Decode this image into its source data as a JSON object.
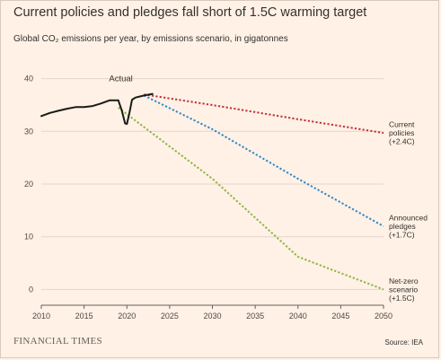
{
  "header": {
    "title": "Current policies and pledges fall short of 1.5C warming target",
    "subtitle": "Global CO₂ emissions per year, by emissions scenario, in gigatonnes"
  },
  "footer": {
    "logo": "FINANCIAL TIMES",
    "source": "Source: IEA"
  },
  "colors": {
    "background": "#fff1e5",
    "actual": "#1a1a1a",
    "current_policies": "#c0323f",
    "announced_pledges": "#2e86c9",
    "net_zero": "#8cb540",
    "grid": "#e3d6c9"
  },
  "chart_data": {
    "type": "line",
    "title": "Current policies and pledges fall short of 1.5C warming target",
    "subtitle": "Global CO₂ emissions per year, by emissions scenario, in gigatonnes",
    "xlim": [
      2010,
      2050
    ],
    "ylim": [
      -3,
      43
    ],
    "x_ticks": [
      2010,
      2015,
      2020,
      2025,
      2030,
      2035,
      2040,
      2045,
      2050
    ],
    "y_ticks": [
      0,
      10,
      20,
      30,
      40
    ],
    "grid": "horizontal",
    "annotations": [
      {
        "text": "Actual",
        "series": "actual"
      }
    ],
    "series": [
      {
        "key": "actual",
        "style": "solid",
        "x": [
          2010,
          2011,
          2012,
          2013,
          2014,
          2015,
          2016,
          2017,
          2018,
          2019,
          2019.4,
          2019.8,
          2020,
          2020.3,
          2020.6,
          2021,
          2022,
          2023
        ],
        "y": [
          32.9,
          33.5,
          33.9,
          34.3,
          34.6,
          34.6,
          34.8,
          35.3,
          35.9,
          35.9,
          34.0,
          31.5,
          31.4,
          33.5,
          36.0,
          36.4,
          36.8,
          37.1
        ]
      },
      {
        "key": "current_policies",
        "label": [
          "Current",
          "policies",
          "(+2.4C)"
        ],
        "style": "dotted",
        "x": [
          2022,
          2030,
          2040,
          2050
        ],
        "y": [
          37.0,
          35.0,
          32.3,
          29.7
        ]
      },
      {
        "key": "announced_pledges",
        "label": [
          "Announced",
          "pledges",
          "(+1.7C)"
        ],
        "style": "dotted",
        "x": [
          2022,
          2030,
          2040,
          2050
        ],
        "y": [
          36.8,
          30.4,
          21.0,
          12.0
        ]
      },
      {
        "key": "net_zero",
        "label": [
          "Net-zero",
          "scenario",
          "(+1.5C)"
        ],
        "style": "dotted",
        "x": [
          2019,
          2030,
          2040,
          2050
        ],
        "y": [
          34.5,
          21.0,
          6.2,
          0.0
        ]
      }
    ]
  }
}
